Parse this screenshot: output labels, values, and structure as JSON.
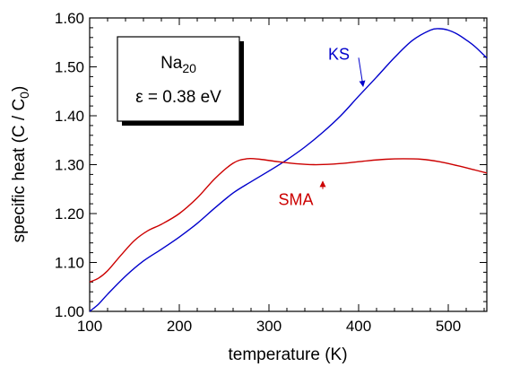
{
  "chart_data": {
    "type": "line",
    "title": "",
    "xlabel": "temperature  (K)",
    "ylabel_prefix": "specific heat  (C / C",
    "ylabel_sub": "0",
    "ylabel_suffix": ")",
    "xlim": [
      100,
      543
    ],
    "ylim": [
      1.0,
      1.6
    ],
    "x_ticks": [
      100,
      200,
      300,
      400,
      500
    ],
    "x_tick_labels": [
      "100",
      "200",
      "300",
      "400",
      "500"
    ],
    "y_ticks": [
      1.0,
      1.1,
      1.2,
      1.3,
      1.4,
      1.5,
      1.6
    ],
    "y_tick_labels": [
      "1.00",
      "1.10",
      "1.20",
      "1.30",
      "1.40",
      "1.50",
      "1.60"
    ],
    "grid": false,
    "legend": "none",
    "inset": {
      "line1_main": "Na",
      "line1_sub": "20",
      "line2": "ε = 0.38 eV"
    },
    "series": [
      {
        "name": "KS",
        "color": "#0000cc",
        "label_x": 378,
        "label_y": 1.515,
        "arrow_to": [
          405,
          1.46
        ],
        "x": [
          100,
          110,
          120,
          140,
          160,
          180,
          200,
          220,
          240,
          260,
          280,
          300,
          320,
          340,
          360,
          380,
          400,
          420,
          440,
          460,
          480,
          490,
          500,
          510,
          520,
          530,
          543
        ],
        "y": [
          1.0,
          1.015,
          1.035,
          1.072,
          1.103,
          1.127,
          1.152,
          1.18,
          1.212,
          1.242,
          1.265,
          1.287,
          1.31,
          1.336,
          1.366,
          1.4,
          1.44,
          1.479,
          1.519,
          1.554,
          1.575,
          1.578,
          1.575,
          1.567,
          1.555,
          1.541,
          1.518
        ]
      },
      {
        "name": "SMA",
        "color": "#cc0000",
        "label_x": 330,
        "label_y": 1.217,
        "arrow_to": [
          360,
          1.266
        ],
        "x": [
          100,
          110,
          120,
          135,
          150,
          165,
          180,
          200,
          220,
          240,
          260,
          275,
          290,
          310,
          330,
          350,
          370,
          390,
          410,
          430,
          450,
          470,
          490,
          510,
          530,
          543
        ],
        "y": [
          1.06,
          1.068,
          1.083,
          1.115,
          1.145,
          1.165,
          1.178,
          1.2,
          1.232,
          1.272,
          1.303,
          1.312,
          1.311,
          1.306,
          1.302,
          1.3,
          1.301,
          1.304,
          1.308,
          1.311,
          1.312,
          1.311,
          1.306,
          1.298,
          1.289,
          1.283
        ]
      }
    ]
  }
}
